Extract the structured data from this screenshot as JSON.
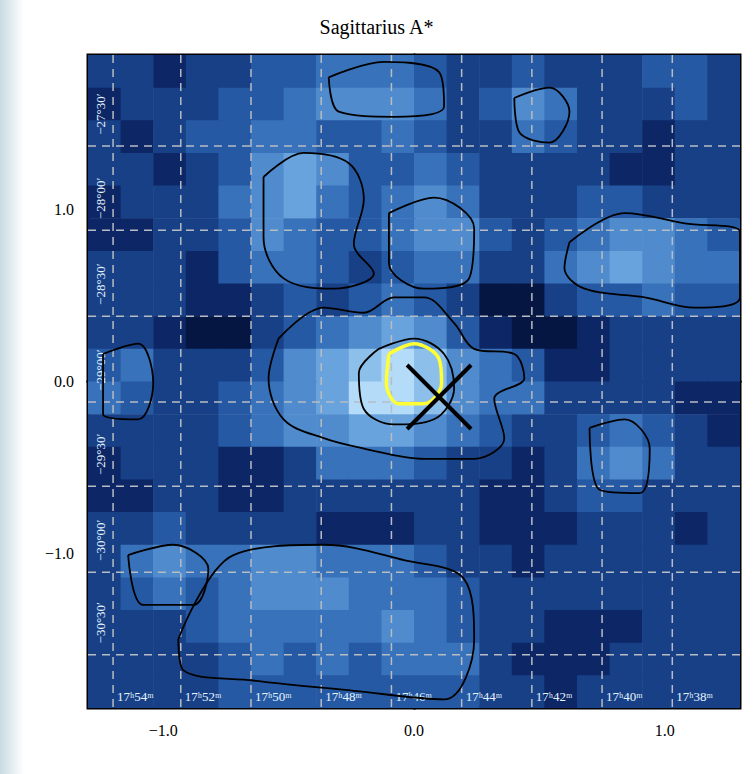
{
  "chart_data": {
    "type": "heatmap",
    "title": "Sagittarius A*",
    "xlim": [
      -1.3,
      1.3
    ],
    "ylim": [
      -1.9,
      1.9
    ],
    "xticks": [
      {
        "value": -1,
        "label": "−1.0"
      },
      {
        "value": 0,
        "label": "0.0"
      },
      {
        "value": 1,
        "label": "1.0"
      }
    ],
    "yticks": [
      {
        "value": -1,
        "label": "−1.0"
      },
      {
        "value": 0,
        "label": "0.0"
      },
      {
        "value": 1,
        "label": "1.0"
      }
    ],
    "grid": true,
    "x_edges": [
      -1.3,
      -1.17,
      -1.04,
      -0.91,
      -0.78,
      -0.65,
      -0.52,
      -0.39,
      -0.26,
      -0.13,
      0,
      0.13,
      0.26,
      0.39,
      0.52,
      0.65,
      0.78,
      0.91,
      1.04,
      1.17,
      1.3
    ],
    "y_edges": [
      1.9,
      1.71,
      1.52,
      1.33,
      1.14,
      0.95,
      0.76,
      0.57,
      0.38,
      0.19,
      0,
      -0.19,
      -0.38,
      -0.57,
      -0.76,
      -0.95,
      -1.14,
      -1.33,
      -1.52,
      -1.71,
      -1.9
    ],
    "zlim": [
      0,
      9
    ],
    "z": [
      [
        3,
        3,
        2,
        3,
        3,
        4,
        4,
        5,
        5,
        5,
        4,
        3,
        3,
        4,
        3,
        3,
        3,
        4,
        4,
        3
      ],
      [
        2,
        3,
        3,
        3,
        4,
        4,
        5,
        6,
        6,
        6,
        5,
        3,
        4,
        6,
        5,
        3,
        3,
        3,
        4,
        3
      ],
      [
        3,
        2,
        3,
        4,
        4,
        5,
        5,
        4,
        4,
        5,
        4,
        3,
        3,
        5,
        4,
        3,
        3,
        2,
        3,
        3
      ],
      [
        3,
        3,
        2,
        3,
        4,
        6,
        7,
        6,
        4,
        4,
        5,
        4,
        3,
        3,
        3,
        3,
        2,
        2,
        3,
        3
      ],
      [
        2,
        3,
        3,
        3,
        5,
        6,
        7,
        5,
        4,
        5,
        6,
        5,
        3,
        3,
        3,
        4,
        4,
        3,
        3,
        3
      ],
      [
        2,
        2,
        3,
        3,
        4,
        6,
        5,
        4,
        4,
        5,
        6,
        6,
        4,
        3,
        4,
        5,
        6,
        6,
        5,
        4
      ],
      [
        3,
        3,
        3,
        2,
        4,
        5,
        5,
        4,
        3,
        4,
        5,
        5,
        3,
        3,
        5,
        6,
        7,
        6,
        5,
        5
      ],
      [
        3,
        3,
        3,
        2,
        2,
        3,
        4,
        3,
        4,
        5,
        4,
        3,
        1,
        1,
        3,
        4,
        4,
        5,
        4,
        4
      ],
      [
        3,
        3,
        2,
        1,
        1,
        3,
        4,
        5,
        6,
        7,
        6,
        4,
        2,
        1,
        1,
        2,
        3,
        3,
        3,
        3
      ],
      [
        4,
        5,
        3,
        3,
        3,
        4,
        6,
        7,
        8,
        9,
        8,
        6,
        5,
        4,
        2,
        2,
        3,
        3,
        3,
        3
      ],
      [
        5,
        4,
        3,
        3,
        4,
        5,
        6,
        7,
        9,
        9,
        8,
        6,
        5,
        5,
        3,
        3,
        3,
        3,
        2,
        2
      ],
      [
        3,
        3,
        3,
        3,
        4,
        5,
        6,
        6,
        7,
        7,
        6,
        5,
        4,
        3,
        3,
        4,
        5,
        4,
        3,
        2
      ],
      [
        2,
        3,
        3,
        3,
        2,
        2,
        3,
        5,
        5,
        5,
        4,
        3,
        3,
        2,
        3,
        5,
        6,
        5,
        3,
        3
      ],
      [
        2,
        2,
        3,
        3,
        2,
        2,
        3,
        3,
        3,
        3,
        3,
        3,
        2,
        2,
        3,
        4,
        4,
        3,
        3,
        3
      ],
      [
        3,
        3,
        4,
        3,
        3,
        3,
        3,
        2,
        2,
        2,
        3,
        3,
        2,
        2,
        2,
        3,
        3,
        3,
        2,
        3
      ],
      [
        3,
        5,
        6,
        5,
        5,
        6,
        6,
        5,
        5,
        5,
        4,
        3,
        3,
        2,
        3,
        3,
        3,
        3,
        3,
        3
      ],
      [
        3,
        4,
        5,
        4,
        5,
        6,
        6,
        6,
        5,
        5,
        5,
        4,
        3,
        3,
        3,
        3,
        3,
        3,
        3,
        3
      ],
      [
        3,
        3,
        3,
        4,
        5,
        5,
        5,
        5,
        5,
        6,
        5,
        4,
        3,
        3,
        2,
        2,
        2,
        3,
        3,
        3
      ],
      [
        3,
        3,
        3,
        3,
        4,
        5,
        4,
        5,
        4,
        5,
        5,
        5,
        3,
        2,
        2,
        2,
        3,
        3,
        3,
        3
      ],
      [
        3,
        3,
        3,
        3,
        4,
        4,
        4,
        4,
        4,
        4,
        4,
        4,
        3,
        3,
        2,
        3,
        3,
        3,
        3,
        3
      ]
    ],
    "ra_grid": [
      {
        "value": -1.2,
        "label": "17ʰ54ᵐ"
      },
      {
        "value": -0.93,
        "label": "17ʰ52ᵐ"
      },
      {
        "value": -0.65,
        "label": "17ʰ50ᵐ"
      },
      {
        "value": -0.37,
        "label": "17ʰ48ᵐ"
      },
      {
        "value": -0.09,
        "label": "17ʰ46ᵐ"
      },
      {
        "value": 0.19,
        "label": "17ʰ44ᵐ"
      },
      {
        "value": 0.47,
        "label": "17ʰ42ᵐ"
      },
      {
        "value": 0.75,
        "label": "17ʰ40ᵐ"
      },
      {
        "value": 1.03,
        "label": "17ʰ38ᵐ"
      }
    ],
    "dec_grid": [
      {
        "value": 1.37,
        "label": "−27°30′"
      },
      {
        "value": 0.88,
        "label": "−28°00′"
      },
      {
        "value": 0.38,
        "label": "−28°30′"
      },
      {
        "value": -0.12,
        "label": "−29°00′"
      },
      {
        "value": -0.61,
        "label": "−29°30′"
      },
      {
        "value": -1.11,
        "label": "−30°00′"
      },
      {
        "value": -1.59,
        "label": "−30°30′"
      }
    ],
    "contours": [
      {
        "color": "#000000",
        "points": [
          [
            -0.54,
            0.25
          ],
          [
            -0.36,
            0.43
          ],
          [
            -0.2,
            0.4
          ],
          [
            -0.08,
            0.49
          ],
          [
            0.04,
            0.49
          ],
          [
            0.16,
            0.34
          ],
          [
            0.24,
            0.19
          ],
          [
            0.4,
            0.16
          ],
          [
            0.44,
            0.02
          ],
          [
            0.32,
            -0.1
          ],
          [
            0.36,
            -0.33
          ],
          [
            0.24,
            -0.45
          ],
          [
            0.04,
            -0.45
          ],
          [
            -0.2,
            -0.39
          ],
          [
            -0.36,
            -0.33
          ],
          [
            -0.52,
            -0.22
          ],
          [
            -0.58,
            0.02
          ]
        ]
      },
      {
        "color": "#000000",
        "points": [
          [
            -0.14,
            0.19
          ],
          [
            0,
            0.25
          ],
          [
            0.12,
            0.16
          ],
          [
            0.16,
            -0.04
          ],
          [
            0.08,
            -0.22
          ],
          [
            -0.08,
            -0.25
          ],
          [
            -0.2,
            -0.16
          ],
          [
            -0.22,
            0.05
          ]
        ]
      },
      {
        "color": "#ffff33",
        "points": [
          [
            -0.1,
            0.16
          ],
          [
            0,
            0.22
          ],
          [
            0.1,
            0.13
          ],
          [
            0.11,
            -0.01
          ],
          [
            0.04,
            -0.13
          ],
          [
            -0.06,
            -0.13
          ],
          [
            -0.11,
            -0.01
          ]
        ]
      },
      {
        "color": "#000000",
        "points": [
          [
            -0.6,
            1.19
          ],
          [
            -0.44,
            1.33
          ],
          [
            -0.26,
            1.27
          ],
          [
            -0.2,
            1.06
          ],
          [
            -0.24,
            0.8
          ],
          [
            -0.16,
            0.63
          ],
          [
            -0.32,
            0.54
          ],
          [
            -0.52,
            0.6
          ],
          [
            -0.6,
            0.84
          ]
        ]
      },
      {
        "color": "#000000",
        "points": [
          [
            -0.1,
            0.98
          ],
          [
            0.08,
            1.07
          ],
          [
            0.24,
            0.89
          ],
          [
            0.22,
            0.6
          ],
          [
            0.04,
            0.54
          ],
          [
            -0.1,
            0.69
          ]
        ]
      },
      {
        "color": "#000000",
        "points": [
          [
            -0.34,
            1.77
          ],
          [
            -0.12,
            1.86
          ],
          [
            0.1,
            1.8
          ],
          [
            0.12,
            1.6
          ],
          [
            -0.08,
            1.54
          ],
          [
            -0.3,
            1.57
          ]
        ]
      },
      {
        "color": "#000000",
        "points": [
          [
            0.4,
            1.65
          ],
          [
            0.54,
            1.71
          ],
          [
            0.62,
            1.57
          ],
          [
            0.54,
            1.39
          ],
          [
            0.42,
            1.45
          ]
        ]
      },
      {
        "color": "#000000",
        "points": [
          [
            0.62,
            0.81
          ],
          [
            0.84,
            0.98
          ],
          [
            1.08,
            0.92
          ],
          [
            1.3,
            0.87
          ],
          [
            1.3,
            0.49
          ],
          [
            1.12,
            0.43
          ],
          [
            0.92,
            0.49
          ],
          [
            0.68,
            0.54
          ],
          [
            0.6,
            0.66
          ]
        ]
      },
      {
        "color": "#000000",
        "points": [
          [
            -1.24,
            0.16
          ],
          [
            -1.1,
            0.22
          ],
          [
            -1.04,
            -0.01
          ],
          [
            -1.1,
            -0.22
          ],
          [
            -1.24,
            -0.19
          ]
        ]
      },
      {
        "color": "#000000",
        "points": [
          [
            -1.14,
            -1.01
          ],
          [
            -0.96,
            -0.95
          ],
          [
            -0.82,
            -1.09
          ],
          [
            -0.88,
            -1.3
          ],
          [
            -1.08,
            -1.3
          ]
        ]
      },
      {
        "color": "#000000",
        "points": [
          [
            -0.94,
            -1.5
          ],
          [
            -0.72,
            -1.01
          ],
          [
            -0.36,
            -0.95
          ],
          [
            -0.04,
            -1.04
          ],
          [
            0.2,
            -1.15
          ],
          [
            0.24,
            -1.5
          ],
          [
            0.12,
            -1.85
          ],
          [
            -0.24,
            -1.8
          ],
          [
            -0.64,
            -1.74
          ],
          [
            -0.92,
            -1.68
          ]
        ]
      },
      {
        "color": "#000000",
        "points": [
          [
            0.7,
            -0.27
          ],
          [
            0.84,
            -0.22
          ],
          [
            0.94,
            -0.39
          ],
          [
            0.9,
            -0.65
          ],
          [
            0.74,
            -0.63
          ]
        ]
      }
    ],
    "markers": [
      {
        "x": 0.1,
        "y": -0.09,
        "marker": "x",
        "color": "#000000"
      }
    ]
  }
}
